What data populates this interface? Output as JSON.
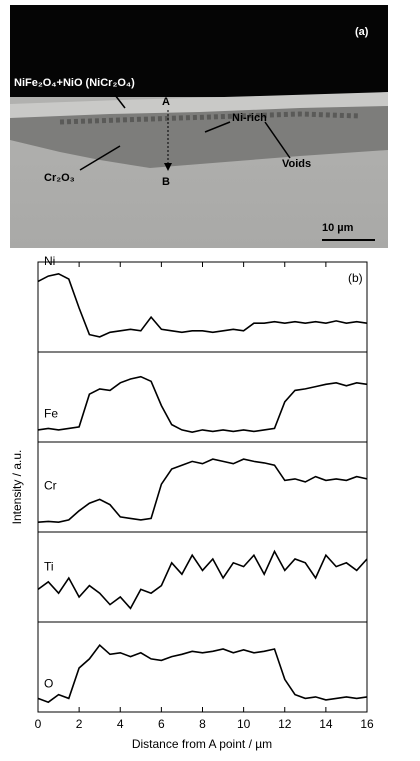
{
  "micrograph": {
    "panel_label": "(a)",
    "layer_label": "NiFe₂O₄+NiO (NiCr₂O₄)",
    "point_a": "A",
    "point_b": "B",
    "ni_rich": "Ni-rich",
    "voids": "Voids",
    "inner_oxide": "Cr₂O₃",
    "scale_bar": "10 µm"
  },
  "chart_data": {
    "type": "line",
    "panel_label": "(b)",
    "x_label": "Distance from A point / µm",
    "y_label": "Intensity / a.u.",
    "x": [
      0,
      0.5,
      1,
      1.5,
      2,
      2.5,
      3,
      3.5,
      4,
      4.5,
      5,
      5.5,
      6,
      6.5,
      7,
      7.5,
      8,
      8.5,
      9,
      9.5,
      10,
      10.5,
      11,
      11.5,
      12,
      12.5,
      13,
      13.5,
      14,
      14.5,
      15,
      15.5,
      16
    ],
    "xlim": [
      0,
      16
    ],
    "xticks": [
      0,
      2,
      4,
      6,
      8,
      10,
      12,
      14,
      16
    ],
    "ylim": [
      0,
      1
    ],
    "series": [
      {
        "name": "Ni",
        "color": "#000000",
        "values": [
          0.85,
          0.92,
          0.95,
          0.88,
          0.5,
          0.15,
          0.12,
          0.18,
          0.2,
          0.22,
          0.2,
          0.38,
          0.22,
          0.2,
          0.18,
          0.2,
          0.2,
          0.18,
          0.2,
          0.22,
          0.2,
          0.3,
          0.3,
          0.32,
          0.3,
          0.32,
          0.3,
          0.32,
          0.3,
          0.33,
          0.3,
          0.32,
          0.3
        ]
      },
      {
        "name": "Fe",
        "color": "#000000",
        "values": [
          0.08,
          0.1,
          0.08,
          0.1,
          0.12,
          0.55,
          0.62,
          0.6,
          0.7,
          0.75,
          0.78,
          0.72,
          0.4,
          0.15,
          0.08,
          0.05,
          0.08,
          0.06,
          0.08,
          0.06,
          0.08,
          0.06,
          0.08,
          0.1,
          0.45,
          0.6,
          0.62,
          0.65,
          0.68,
          0.7,
          0.66,
          0.7,
          0.68
        ]
      },
      {
        "name": "Cr",
        "color": "#000000",
        "values": [
          0.05,
          0.06,
          0.05,
          0.08,
          0.2,
          0.3,
          0.35,
          0.28,
          0.12,
          0.1,
          0.08,
          0.1,
          0.55,
          0.75,
          0.8,
          0.85,
          0.82,
          0.88,
          0.85,
          0.82,
          0.88,
          0.85,
          0.83,
          0.8,
          0.6,
          0.62,
          0.58,
          0.65,
          0.6,
          0.62,
          0.6,
          0.65,
          0.62
        ]
      },
      {
        "name": "Ti",
        "color": "#000000",
        "values": [
          0.35,
          0.45,
          0.3,
          0.5,
          0.25,
          0.4,
          0.3,
          0.15,
          0.25,
          0.1,
          0.35,
          0.3,
          0.4,
          0.7,
          0.55,
          0.8,
          0.6,
          0.75,
          0.5,
          0.7,
          0.65,
          0.8,
          0.55,
          0.85,
          0.6,
          0.75,
          0.7,
          0.5,
          0.8,
          0.65,
          0.7,
          0.6,
          0.75
        ]
      },
      {
        "name": "O",
        "color": "#000000",
        "values": [
          0.1,
          0.05,
          0.15,
          0.1,
          0.5,
          0.62,
          0.8,
          0.68,
          0.7,
          0.65,
          0.7,
          0.62,
          0.6,
          0.65,
          0.68,
          0.72,
          0.7,
          0.72,
          0.75,
          0.7,
          0.74,
          0.7,
          0.72,
          0.75,
          0.35,
          0.15,
          0.1,
          0.12,
          0.08,
          0.1,
          0.12,
          0.1,
          0.12
        ]
      }
    ]
  }
}
